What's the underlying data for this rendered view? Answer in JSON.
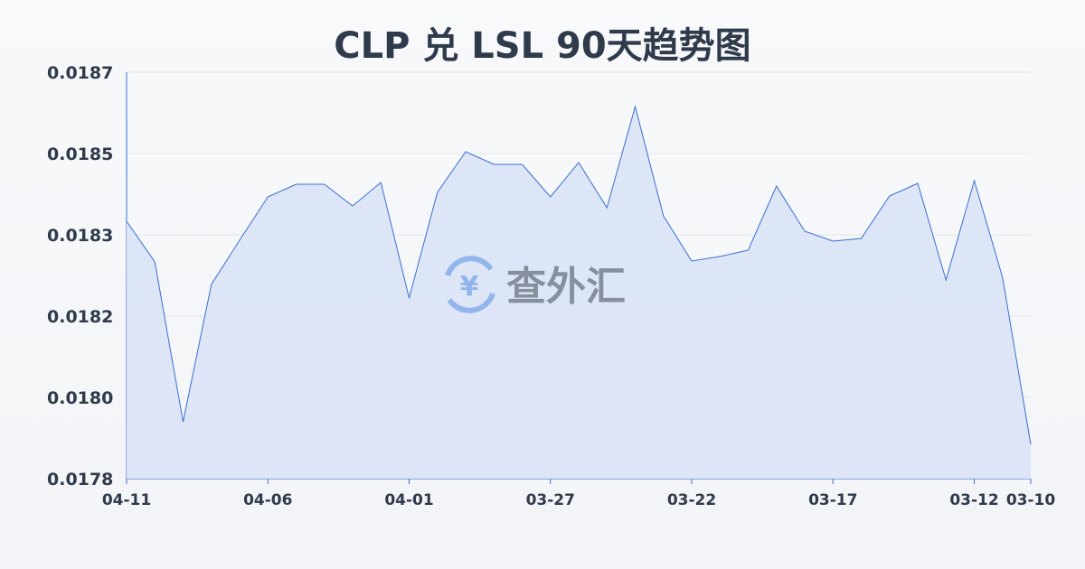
{
  "chart_data": {
    "type": "area",
    "title": "CLP 兑 LSL 90天趋势图",
    "xlabel": "",
    "ylabel": "",
    "x": [
      "04-11",
      "04-10",
      "04-09",
      "04-08",
      "04-07",
      "04-06",
      "04-05",
      "04-04",
      "04-03",
      "04-02",
      "04-01",
      "03-31",
      "03-30",
      "03-29",
      "03-28",
      "03-27",
      "03-26",
      "03-25",
      "03-24",
      "03-23",
      "03-22",
      "03-21",
      "03-20",
      "03-19",
      "03-18",
      "03-17",
      "03-16",
      "03-15",
      "03-14",
      "03-13",
      "03-12",
      "03-11",
      "03-10"
    ],
    "x_tick_labels": [
      "04-11",
      "04-06",
      "04-01",
      "03-27",
      "03-22",
      "03-17",
      "03-12",
      "03-10"
    ],
    "y_tick_labels": [
      "0.0187",
      "0.0185",
      "0.0183",
      "0.0182",
      "0.0180",
      "0.0178"
    ],
    "ylim": [
      0.0178,
      0.0187
    ],
    "values": [
      0.01837,
      0.01828,
      0.017926,
      0.01823,
      0.018328,
      0.018424,
      0.018452,
      0.018452,
      0.018404,
      0.018456,
      0.0182,
      0.018434,
      0.018524,
      0.018496,
      0.018496,
      0.018424,
      0.0185,
      0.0184,
      0.018624,
      0.018382,
      0.018282,
      0.018292,
      0.018306,
      0.018448,
      0.018348,
      0.018326,
      0.018332,
      0.018426,
      0.018454,
      0.01824,
      0.01846,
      0.018246,
      0.017876
    ],
    "grid": true,
    "colors": {
      "line": "#3a6fd0",
      "fill": "#dae3f6"
    }
  },
  "watermark": {
    "text": "查外汇",
    "icon": "yen-exchange-icon"
  }
}
